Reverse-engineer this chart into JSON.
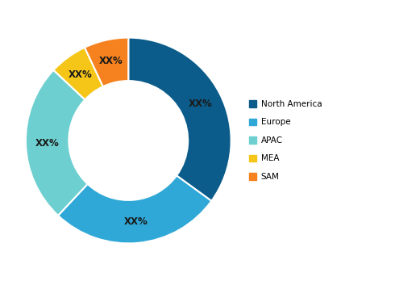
{
  "labels": [
    "North America",
    "Europe",
    "APAC",
    "MEA",
    "SAM"
  ],
  "values": [
    35,
    27,
    25,
    6,
    7
  ],
  "colors": [
    "#0b5c8a",
    "#2fa8d8",
    "#6dcfcf",
    "#f5c518",
    "#f5821f"
  ],
  "label_text": "XX%",
  "legend_labels": [
    "North America",
    "Europe",
    "APAC",
    "MEA",
    "SAM"
  ],
  "wedge_edge_color": "white",
  "wedge_edge_width": 1.5,
  "donut_width": 0.42,
  "figsize": [
    4.9,
    3.48
  ],
  "dpi": 100,
  "text_color": "#1a1a1a",
  "text_fontsize": 8.5,
  "legend_fontsize": 7.5
}
